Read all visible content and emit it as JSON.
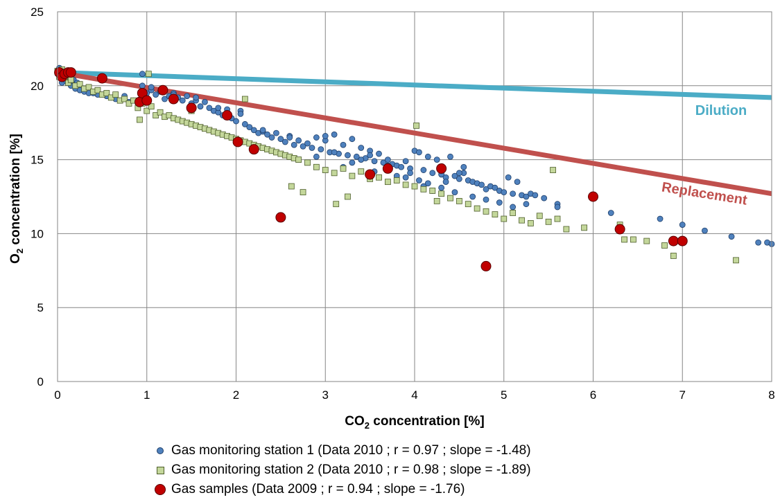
{
  "chart_data": {
    "type": "scatter",
    "title": "",
    "xlabel": "CO",
    "xlabel_sub": "2",
    "xlabel_tail": " concentration [%]",
    "ylabel": "O",
    "ylabel_sub": "2",
    "ylabel_tail": " concentration [%]",
    "xlim": [
      0,
      8
    ],
    "ylim": [
      0,
      25
    ],
    "x_ticks": [
      "0",
      "1",
      "2",
      "3",
      "4",
      "5",
      "6",
      "7",
      "8"
    ],
    "y_ticks": [
      "0",
      "5",
      "10",
      "15",
      "20",
      "25"
    ],
    "grid": true,
    "legend_position": "bottom",
    "colors": {
      "station1": "#4f81bd",
      "station2": "#c4d79b",
      "samples": "#c00000",
      "dilution": "#4bacc6",
      "replacement": "#c0504d"
    },
    "lines": [
      {
        "name": "Dilution",
        "x": [
          0,
          8
        ],
        "y": [
          20.9,
          19.2
        ]
      },
      {
        "name": "Replacement",
        "x": [
          0,
          8
        ],
        "y": [
          20.9,
          12.7
        ]
      }
    ],
    "annotations": [
      "Dilution",
      "Replacement"
    ],
    "series": [
      {
        "name": "Gas monitoring station 1 (Data 2010 ; r = 0.97 ; slope = -1.48)",
        "marker": "circle-small",
        "x": [
          0.0,
          0.02,
          0.03,
          0.05,
          0.05,
          0.08,
          0.1,
          0.12,
          0.15,
          0.18,
          0.2,
          0.22,
          0.25,
          0.3,
          0.35,
          0.4,
          0.45,
          0.5,
          0.55,
          0.6,
          0.65,
          0.7,
          0.75,
          0.8,
          0.85,
          0.9,
          0.95,
          1.0,
          1.05,
          1.1,
          1.15,
          1.2,
          1.25,
          1.3,
          1.35,
          1.4,
          1.45,
          1.5,
          1.55,
          1.6,
          1.65,
          1.7,
          1.75,
          1.8,
          1.85,
          1.9,
          1.95,
          2.0,
          2.05,
          2.1,
          2.15,
          2.2,
          2.25,
          2.3,
          2.35,
          2.4,
          2.45,
          2.5,
          2.55,
          2.6,
          2.65,
          2.7,
          2.75,
          2.8,
          2.85,
          2.9,
          2.95,
          3.0,
          3.05,
          3.1,
          3.15,
          3.2,
          3.25,
          3.3,
          3.35,
          3.4,
          3.45,
          3.5,
          3.55,
          3.6,
          3.65,
          3.7,
          3.75,
          3.8,
          3.85,
          3.9,
          3.95,
          4.0,
          4.05,
          4.1,
          4.15,
          4.2,
          4.25,
          4.3,
          4.35,
          4.4,
          4.45,
          4.5,
          4.55,
          4.6,
          4.65,
          4.7,
          4.75,
          4.8,
          4.85,
          4.9,
          4.95,
          5.0,
          5.05,
          5.1,
          5.15,
          5.2,
          5.25,
          5.3,
          5.35,
          5.45,
          5.6,
          5.6,
          6.2,
          6.75,
          7.0,
          7.25,
          7.55,
          7.85,
          7.95,
          8.0,
          0.95,
          1.05,
          1.3,
          1.55,
          1.8,
          2.05,
          2.3,
          2.6,
          2.9,
          3.0,
          3.2,
          3.4,
          3.55,
          3.8,
          3.95,
          4.05,
          4.15,
          4.3,
          4.45,
          4.55,
          4.65,
          4.8,
          4.95,
          5.1,
          5.25,
          3.1,
          3.3,
          3.5,
          3.7,
          3.9,
          4.1,
          4.2,
          4.35,
          4.5
        ],
        "y": [
          20.8,
          21.2,
          20.6,
          21.0,
          20.2,
          20.7,
          20.3,
          20.9,
          20.0,
          20.4,
          19.8,
          20.2,
          19.7,
          19.6,
          19.5,
          19.5,
          19.4,
          19.4,
          19.3,
          19.2,
          19.1,
          19.0,
          19.3,
          18.9,
          19.0,
          18.8,
          20.8,
          19.5,
          19.7,
          19.4,
          19.6,
          19.1,
          19.3,
          19.5,
          19.2,
          19.0,
          19.3,
          18.8,
          19.0,
          18.6,
          18.9,
          18.5,
          18.3,
          18.2,
          18.0,
          18.4,
          17.8,
          17.6,
          18.3,
          17.4,
          17.2,
          17.0,
          16.8,
          16.9,
          16.7,
          16.5,
          16.8,
          16.4,
          16.2,
          16.6,
          16.0,
          16.3,
          15.9,
          16.1,
          15.8,
          16.5,
          15.7,
          16.3,
          15.5,
          16.7,
          15.4,
          16.0,
          15.3,
          16.4,
          15.2,
          15.8,
          15.1,
          15.6,
          14.9,
          15.4,
          14.8,
          15.0,
          14.7,
          14.6,
          14.5,
          14.9,
          14.4,
          15.6,
          15.5,
          14.3,
          15.2,
          14.1,
          15.0,
          14.0,
          13.8,
          15.2,
          13.9,
          13.7,
          14.5,
          13.6,
          13.5,
          13.4,
          13.3,
          13.0,
          13.2,
          13.1,
          12.9,
          12.8,
          13.8,
          12.7,
          13.5,
          12.6,
          12.5,
          12.7,
          12.6,
          12.4,
          12.0,
          11.8,
          11.4,
          11.0,
          10.6,
          10.2,
          9.8,
          9.4,
          9.4,
          9.3,
          20.0,
          19.9,
          19.4,
          19.2,
          18.5,
          18.1,
          17.0,
          16.5,
          15.2,
          16.6,
          14.5,
          15.0,
          14.2,
          13.9,
          14.1,
          13.6,
          13.4,
          13.1,
          12.8,
          14.1,
          12.5,
          12.3,
          12.1,
          11.8,
          12.0,
          15.5,
          14.8,
          15.3,
          14.6,
          13.8,
          13.2,
          12.9,
          13.5,
          14.1
        ]
      },
      {
        "name": "Gas monitoring station 2 (Data 2010 ; r = 0.98 ; slope = -1.89)",
        "marker": "square",
        "x": [
          0.0,
          0.02,
          0.05,
          0.08,
          0.1,
          0.12,
          0.15,
          0.2,
          0.25,
          0.3,
          0.35,
          0.4,
          0.45,
          0.5,
          0.55,
          0.6,
          0.65,
          0.7,
          0.75,
          0.8,
          0.85,
          0.9,
          0.95,
          1.0,
          1.05,
          1.1,
          1.15,
          1.2,
          1.25,
          1.3,
          1.35,
          1.4,
          1.45,
          1.5,
          1.55,
          1.6,
          1.65,
          1.7,
          1.75,
          1.8,
          1.85,
          1.9,
          1.95,
          2.0,
          2.05,
          2.1,
          2.15,
          2.2,
          2.25,
          2.3,
          2.35,
          2.4,
          2.45,
          2.5,
          2.55,
          2.6,
          2.65,
          2.7,
          2.8,
          2.9,
          3.0,
          3.1,
          3.2,
          3.3,
          3.4,
          3.5,
          3.6,
          3.7,
          3.8,
          3.9,
          4.0,
          4.1,
          4.2,
          4.3,
          4.4,
          4.5,
          4.6,
          4.7,
          4.8,
          4.9,
          5.0,
          5.1,
          5.2,
          5.3,
          5.4,
          5.5,
          5.6,
          5.7,
          5.9,
          6.3,
          6.35,
          6.45,
          6.6,
          6.8,
          6.9,
          7.6,
          0.92,
          1.02,
          2.1,
          2.62,
          3.12,
          4.02,
          5.55,
          4.25,
          3.25,
          2.75,
          1.5
        ],
        "y": [
          21.0,
          20.6,
          21.1,
          20.5,
          20.8,
          20.2,
          20.4,
          20.0,
          20.1,
          19.8,
          19.9,
          19.6,
          19.7,
          19.4,
          19.5,
          19.2,
          19.4,
          19.0,
          19.1,
          18.8,
          19.0,
          18.5,
          18.8,
          18.3,
          18.6,
          18.0,
          18.2,
          17.9,
          18.0,
          17.8,
          17.7,
          17.6,
          17.5,
          17.4,
          17.3,
          17.2,
          17.1,
          17.0,
          16.9,
          16.8,
          16.7,
          16.6,
          16.5,
          16.4,
          16.3,
          16.2,
          16.1,
          16.0,
          15.9,
          15.8,
          15.7,
          15.6,
          15.5,
          15.4,
          15.3,
          15.2,
          15.1,
          15.0,
          14.8,
          14.5,
          14.3,
          14.1,
          14.4,
          13.9,
          14.2,
          13.7,
          13.8,
          13.5,
          13.6,
          13.3,
          13.2,
          13.0,
          12.9,
          12.7,
          12.4,
          12.2,
          12.0,
          11.7,
          11.5,
          11.3,
          11.0,
          11.4,
          10.9,
          10.7,
          11.2,
          10.8,
          11.0,
          10.3,
          10.4,
          10.6,
          9.6,
          9.6,
          9.5,
          9.2,
          8.5,
          8.2,
          17.7,
          20.8,
          19.1,
          13.2,
          12.0,
          17.3,
          14.3,
          12.2,
          12.5,
          12.8,
          18.3
        ]
      },
      {
        "name": "Gas samples (Data 2009 ; r = 0.94 ; slope = -1.76)",
        "marker": "circle-large",
        "x": [
          0.02,
          0.05,
          0.08,
          0.12,
          0.15,
          0.5,
          0.92,
          0.95,
          1.0,
          1.18,
          1.3,
          1.5,
          1.9,
          2.02,
          2.2,
          2.5,
          3.5,
          3.7,
          4.3,
          4.8,
          6.0,
          6.3,
          6.9,
          7.0
        ],
        "y": [
          20.9,
          20.6,
          20.8,
          20.9,
          20.9,
          20.5,
          18.9,
          19.5,
          19.0,
          19.7,
          19.1,
          18.5,
          18.0,
          16.2,
          15.7,
          11.1,
          14.0,
          14.4,
          14.4,
          7.8,
          12.5,
          10.3,
          9.5,
          9.5
        ]
      }
    ]
  }
}
